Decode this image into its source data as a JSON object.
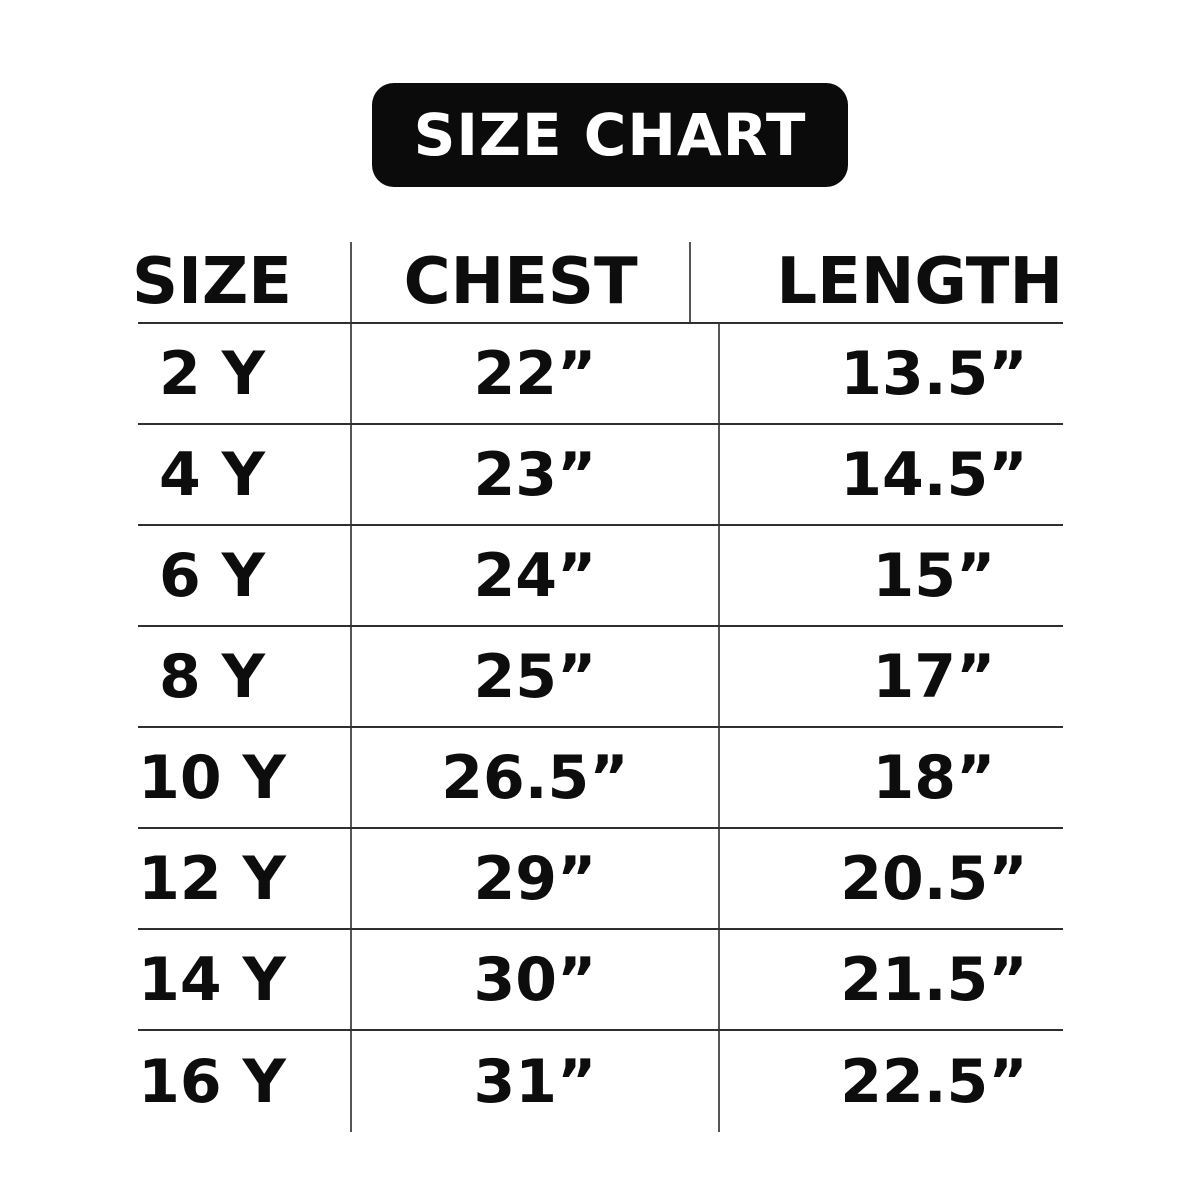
{
  "title": {
    "label": "SIZE CHART"
  },
  "colors": {
    "bg": "#ffffff",
    "ink": "#0d0d0d",
    "badge-bg": "#0b0b0b",
    "badge-ink": "#ffffff",
    "hline": "#2f2f2f",
    "vline": "#565656"
  },
  "chart_data": {
    "type": "table",
    "title": "SIZE CHART",
    "columns": [
      "SIZE",
      "CHEST",
      "LENGTH"
    ],
    "rows": [
      [
        "2 Y",
        "22”",
        "13.5”"
      ],
      [
        "4 Y",
        "23”",
        "14.5”"
      ],
      [
        "6 Y",
        "24”",
        "15”"
      ],
      [
        "8 Y",
        "25”",
        "17”"
      ],
      [
        "10 Y",
        "26.5”",
        "18”"
      ],
      [
        "12 Y",
        "29”",
        "20.5”"
      ],
      [
        "14 Y",
        "30”",
        "21.5”"
      ],
      [
        "16 Y",
        "31”",
        "22.5”"
      ]
    ],
    "layout": {
      "grid": "horizontal rules between rows, vertical rules between columns, no outer border"
    }
  }
}
